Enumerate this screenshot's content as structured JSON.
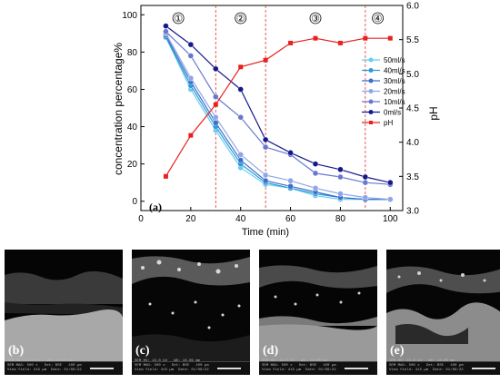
{
  "chart_data": {
    "type": "line",
    "panel_label": "(a)",
    "xlabel": "Time (min)",
    "ylabel_left": "concentration percentage%",
    "ylabel_right": "pH",
    "xlim": [
      0,
      105
    ],
    "ylim_left": [
      -5,
      105
    ],
    "ylim_right": [
      3.0,
      6.0
    ],
    "x_ticks": [
      0,
      20,
      40,
      60,
      80,
      100
    ],
    "y_ticks_left": [
      0,
      20,
      40,
      60,
      80,
      100
    ],
    "y_ticks_right": [
      3.0,
      3.5,
      4.0,
      4.5,
      5.0,
      5.5,
      6.0
    ],
    "stage_boundaries": [
      30,
      50,
      90
    ],
    "stages": [
      {
        "label": "①",
        "x": 15
      },
      {
        "label": "②",
        "x": 40
      },
      {
        "label": "③",
        "x": 70
      },
      {
        "label": "④",
        "x": 95
      }
    ],
    "x": [
      10,
      20,
      30,
      40,
      50,
      60,
      70,
      80,
      90,
      100
    ],
    "legend_position": "right",
    "series": [
      {
        "name": "50ml/s",
        "axis": "left",
        "color": "#66ccf2",
        "values": [
          88,
          60,
          38,
          18,
          9,
          7,
          3,
          1,
          1,
          1
        ]
      },
      {
        "name": "40ml/s",
        "axis": "left",
        "color": "#2b9ad6",
        "values": [
          88,
          62,
          40,
          20,
          10,
          7,
          4,
          2,
          1,
          1
        ]
      },
      {
        "name": "30ml/s",
        "axis": "left",
        "color": "#3a72c9",
        "values": [
          89,
          64,
          42,
          22,
          11,
          8,
          5,
          2,
          1,
          1
        ]
      },
      {
        "name": "20ml/s",
        "axis": "left",
        "color": "#8fa6e6",
        "values": [
          90,
          66,
          45,
          25,
          14,
          11,
          7,
          4,
          2,
          1
        ]
      },
      {
        "name": "10ml/s",
        "axis": "left",
        "color": "#6878cf",
        "values": [
          91,
          78,
          56,
          45,
          29,
          25,
          15,
          13,
          10,
          9
        ]
      },
      {
        "name": "0ml/s",
        "axis": "left",
        "color": "#14198a",
        "values": [
          94,
          84,
          71,
          60,
          33,
          26,
          20,
          17,
          13,
          10
        ]
      },
      {
        "name": "pH",
        "axis": "right",
        "color": "#e82020",
        "values": [
          3.5,
          4.1,
          4.55,
          5.1,
          5.2,
          5.45,
          5.52,
          5.45,
          5.52,
          5.52
        ]
      }
    ]
  },
  "micrographs": [
    {
      "label": "(b)",
      "info": "SEM HV: 15.0 kV   WD: 10.07 mm\nSEM MAG: 500 x   Det: BSE   100 µm\nView field: 415 µm  Date: 01/06/22"
    },
    {
      "label": "(c)",
      "info": "SEM HV: 15.0 kV   WD: 10.06 mm\nSEM MAG: 500 x   Det: BSE   100 µm\nView field: 415 µm  Date: 01/06/22"
    },
    {
      "label": "(d)",
      "info": "SEM HV: 15.0 kV   WD: 10.05 mm\nSEM MAG: 500 x   Det: BSE   100 µm\nView field: 415 µm  Date: 01/06/22"
    },
    {
      "label": "(e)",
      "info": "SEM HV: 15.0 kV   WD: 10.08 mm\nSEM MAG: 500 x   Det: BSE   100 µm\nView field: 415 µm  Date: 01/06/22"
    }
  ]
}
